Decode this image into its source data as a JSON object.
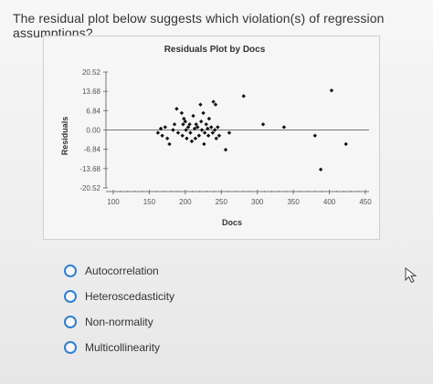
{
  "question": "The residual plot below suggests which violation(s) of regression assumptions?",
  "options": [
    {
      "label": "Autocorrelation"
    },
    {
      "label": "Heteroscedasticity"
    },
    {
      "label": "Non-normality"
    },
    {
      "label": "Multicollinearity"
    }
  ],
  "colors": {
    "radio_border": "#2f7fd0",
    "point": "#111111",
    "axis": "#777777"
  },
  "chart_data": {
    "type": "scatter",
    "title": "Residuals Plot by Docs",
    "xlabel": "Docs",
    "ylabel": "Residuals",
    "xlim": [
      100,
      450
    ],
    "ylim": [
      -20.52,
      20.52
    ],
    "x_ticks": [
      "100",
      "150",
      "200",
      "250",
      "300",
      "350",
      "400",
      "450"
    ],
    "y_ticks": [
      "20.52",
      "13.68",
      "6.84",
      "0.00",
      "-6.84",
      "-13.68",
      "-20.52"
    ],
    "grid": false,
    "points": [
      {
        "x": 162,
        "y": -1
      },
      {
        "x": 166,
        "y": 0.5
      },
      {
        "x": 168,
        "y": -2
      },
      {
        "x": 172,
        "y": 1
      },
      {
        "x": 175,
        "y": -3
      },
      {
        "x": 178,
        "y": -5
      },
      {
        "x": 183,
        "y": 0
      },
      {
        "x": 185,
        "y": 2
      },
      {
        "x": 188,
        "y": 7.5
      },
      {
        "x": 190,
        "y": -1
      },
      {
        "x": 195,
        "y": 6
      },
      {
        "x": 196,
        "y": -2
      },
      {
        "x": 197,
        "y": 2
      },
      {
        "x": 198,
        "y": 4
      },
      {
        "x": 200,
        "y": 3
      },
      {
        "x": 201,
        "y": 0
      },
      {
        "x": 202,
        "y": -3
      },
      {
        "x": 204,
        "y": 1
      },
      {
        "x": 206,
        "y": 2
      },
      {
        "x": 207,
        "y": -1
      },
      {
        "x": 209,
        "y": -4
      },
      {
        "x": 211,
        "y": 5
      },
      {
        "x": 213,
        "y": 0.5
      },
      {
        "x": 214,
        "y": -3
      },
      {
        "x": 215,
        "y": 2
      },
      {
        "x": 217,
        "y": 1
      },
      {
        "x": 219,
        "y": -2
      },
      {
        "x": 221,
        "y": 9
      },
      {
        "x": 222,
        "y": 3
      },
      {
        "x": 223,
        "y": 0
      },
      {
        "x": 225,
        "y": 6
      },
      {
        "x": 226,
        "y": -5
      },
      {
        "x": 227,
        "y": -1
      },
      {
        "x": 229,
        "y": 2
      },
      {
        "x": 231,
        "y": 0.5
      },
      {
        "x": 232,
        "y": -2
      },
      {
        "x": 233,
        "y": 4
      },
      {
        "x": 236,
        "y": 1
      },
      {
        "x": 238,
        "y": -1
      },
      {
        "x": 239,
        "y": 10
      },
      {
        "x": 241,
        "y": 0
      },
      {
        "x": 242,
        "y": 9
      },
      {
        "x": 243,
        "y": -3
      },
      {
        "x": 245,
        "y": 1
      },
      {
        "x": 247,
        "y": -2
      },
      {
        "x": 256,
        "y": -7
      },
      {
        "x": 261,
        "y": -1
      },
      {
        "x": 281,
        "y": 12
      },
      {
        "x": 308,
        "y": 2
      },
      {
        "x": 337,
        "y": 1
      },
      {
        "x": 380,
        "y": -2
      },
      {
        "x": 388,
        "y": -14
      },
      {
        "x": 403,
        "y": 14
      },
      {
        "x": 423,
        "y": -5
      }
    ]
  }
}
